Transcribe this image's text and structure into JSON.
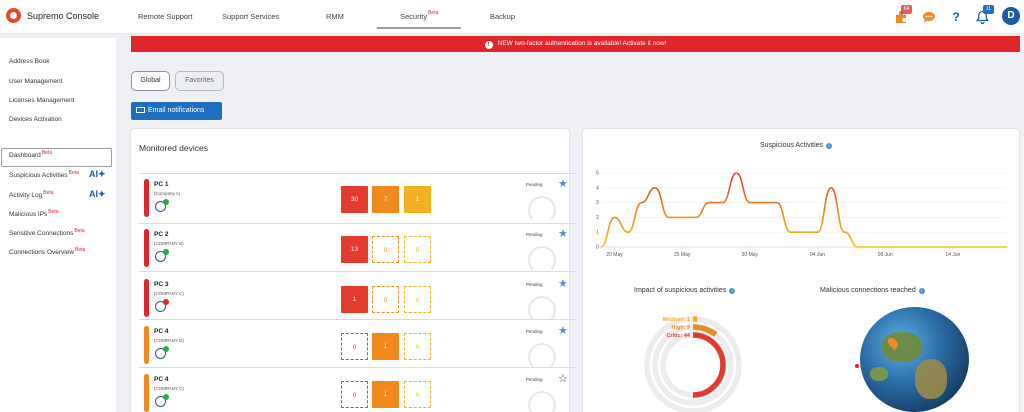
{
  "app": {
    "name": "Supremo Console"
  },
  "nav": {
    "tabs": [
      "Remote Support",
      "Support Services",
      "RMM",
      "Security",
      "Backup"
    ],
    "security_beta": "Beta"
  },
  "topbar": {
    "icons": [
      "puzzle-icon",
      "chat-icon",
      "help-icon",
      "bell-icon"
    ],
    "puzzle_badge": "64",
    "bell_badge": "11",
    "help_glyph": "?",
    "avatar_letter": "D"
  },
  "sidebar": {
    "top_items": [
      "Address Book",
      "User Management",
      "Licenses Management",
      "Devices Activation"
    ],
    "security_items": [
      {
        "label": "Dashboard",
        "beta": "Beta",
        "ai": ""
      },
      {
        "label": "Suspicious Activities",
        "beta": "Beta",
        "ai": "AI"
      },
      {
        "label": "Activity Log",
        "beta": "Beta",
        "ai": "AI"
      },
      {
        "label": "Malicious IPs",
        "beta": "Beta",
        "ai": ""
      },
      {
        "label": "Sensitive Connections",
        "beta": "Beta",
        "ai": ""
      },
      {
        "label": "Connections Overview",
        "beta": "Beta",
        "ai": ""
      }
    ]
  },
  "banner": {
    "icon": "!",
    "text": "NEW two-factor authentication is available! Activate it now!"
  },
  "filters": {
    "global": "Global",
    "favorites": "Favorites"
  },
  "email_button": "Email notifications",
  "devices_card": {
    "title": "Monitored devices",
    "rows": [
      {
        "name": "PC 1",
        "company": "(Company A)",
        "bar_color": "#e0262b",
        "status_color": "#2aa84a",
        "counts": [
          "30",
          "7",
          "1"
        ],
        "counts_filled": [
          true,
          true,
          true
        ],
        "pending": "Pending",
        "favorite": true
      },
      {
        "name": "PC 2",
        "company": "(COMPANY B)",
        "bar_color": "#e0262b",
        "status_color": "#2aa84a",
        "counts": [
          "13",
          "0",
          "0"
        ],
        "counts_filled": [
          true,
          false,
          false
        ],
        "pending": "Pending",
        "favorite": true
      },
      {
        "name": "PC 3",
        "company": "(COMPANY C)",
        "bar_color": "#e0262b",
        "status_color": "#e0262b",
        "counts": [
          "1",
          "0",
          "0"
        ],
        "counts_filled": [
          true,
          false,
          false
        ],
        "pending": "Pending",
        "favorite": true
      },
      {
        "name": "PC 4",
        "company": "(COMPANY D)",
        "bar_color": "#f0891e",
        "status_color": "#2aa84a",
        "counts": [
          "0",
          "1",
          "0"
        ],
        "counts_filled": [
          false,
          true,
          false
        ],
        "pending": "Pending",
        "favorite": true
      },
      {
        "name": "PC 4",
        "company": "(COMPANY C)",
        "bar_color": "#f0891e",
        "status_color": "#2aa84a",
        "counts": [
          "0",
          "1",
          "0"
        ],
        "counts_filled": [
          false,
          true,
          false
        ],
        "pending": "Pending",
        "favorite": false
      }
    ]
  },
  "severity_colors": {
    "critic": "#e53b2f",
    "high": "#f0891e",
    "medium": "#f5b021"
  },
  "suspicious_card": {
    "title": "Suspicious Activities",
    "impact_title": "Impact of suspicious activities",
    "malicious_title": "Malicious connections reached",
    "impact": [
      {
        "label": "Medium: 1",
        "value": 1
      },
      {
        "label": "High: 9",
        "value": 9
      },
      {
        "label": "Critic: 44",
        "value": 44
      }
    ]
  },
  "chart_data": {
    "type": "line",
    "x_ticks": [
      "20 May",
      "25 May",
      "30 May",
      "04 Jun",
      "09 Jun",
      "14 Jun"
    ],
    "y_ticks": [
      "0",
      "1",
      "2",
      "3",
      "4",
      "5"
    ],
    "ylim": [
      0,
      5
    ],
    "x": [
      "19 May",
      "20 May",
      "21 May",
      "22 May",
      "23 May",
      "24 May",
      "25 May",
      "26 May",
      "27 May",
      "28 May",
      "29 May",
      "30 May",
      "31 May",
      "01 Jun",
      "02 Jun",
      "03 Jun",
      "04 Jun",
      "05 Jun",
      "06 Jun",
      "07 Jun",
      "08 Jun",
      "09 Jun",
      "10 Jun",
      "11 Jun",
      "12 Jun",
      "13 Jun",
      "14 Jun",
      "15 Jun",
      "16 Jun",
      "17 Jun",
      "18 Jun"
    ],
    "values": [
      0,
      2,
      1,
      3,
      4,
      2,
      2,
      2,
      3,
      3,
      5,
      3,
      3,
      3,
      1,
      1,
      1,
      4,
      1,
      0,
      0,
      0,
      0,
      0,
      0,
      0,
      0,
      0,
      0,
      0,
      0
    ]
  }
}
